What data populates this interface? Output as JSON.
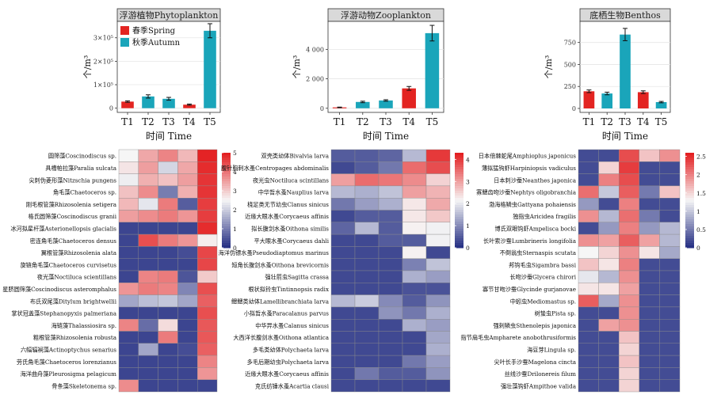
{
  "colors": {
    "spring": "#e32421",
    "autumn": "#1aa5ba",
    "heat_low": "#232d82",
    "heat_mid": "#f6f6f6",
    "heat_high": "#e31a1c",
    "panel_bg": "#ffffff",
    "grid": "#e6e6e6",
    "strip_bg": "#d9d9d9"
  },
  "chart_data": [
    {
      "type": "bar",
      "title": "浮游植物Phytoplankton",
      "categories": [
        "T1",
        "T2",
        "T3",
        "T4",
        "T5"
      ],
      "xlabel": "时间 Time",
      "ylabel": "个/m³",
      "y_ticks": [
        "0",
        "1×10⁵",
        "2×10⁵",
        "3×10⁵"
      ],
      "y_tick_values": [
        0,
        100000,
        200000,
        300000
      ],
      "ylim": [
        -18000,
        370000
      ],
      "legend": {
        "position": "top-left",
        "entries": [
          {
            "name": "春季Spring",
            "series": "spring"
          },
          {
            "name": "秋季Autumn",
            "series": "autumn"
          }
        ]
      },
      "season": [
        "spring",
        "autumn",
        "autumn",
        "spring",
        "autumn"
      ],
      "values": [
        28000,
        50000,
        40000,
        15000,
        330000
      ],
      "errors": [
        3000,
        7000,
        6000,
        2500,
        30000
      ]
    },
    {
      "type": "bar",
      "title": "浮游动物Zooplankton",
      "categories": [
        "T1",
        "T2",
        "T3",
        "T4",
        "T5"
      ],
      "xlabel": "时间 Time",
      "ylabel": "个/m³",
      "y_ticks": [
        "0",
        "2 000",
        "4 000"
      ],
      "y_tick_values": [
        0,
        2000,
        4000
      ],
      "ylim": [
        -280,
        5900
      ],
      "season": [
        "spring",
        "autumn",
        "autumn",
        "spring",
        "autumn"
      ],
      "values": [
        60,
        430,
        530,
        1350,
        5100
      ],
      "errors": [
        20,
        50,
        50,
        130,
        530
      ]
    },
    {
      "type": "bar",
      "title": "底栖生物Benthos",
      "categories": [
        "T1",
        "T2",
        "T3",
        "T4",
        "T5"
      ],
      "xlabel": "时间 Time",
      "ylabel": "个/m³",
      "y_ticks": [
        "0",
        "250",
        "500",
        "750"
      ],
      "y_tick_values": [
        0,
        250,
        500,
        750
      ],
      "ylim": [
        -45,
        990
      ],
      "season": [
        "spring",
        "autumn",
        "autumn",
        "spring",
        "autumn"
      ],
      "values": [
        195,
        170,
        840,
        185,
        72
      ],
      "errors": [
        15,
        15,
        70,
        15,
        8
      ]
    },
    {
      "type": "heatmap",
      "columns": 5,
      "scale": [
        0,
        5
      ],
      "colorbar_ticks": [
        "0",
        "1",
        "2",
        "3",
        "4",
        "5"
      ],
      "rows": [
        {
          "label": "圆筛藻Coscinodiscus sp.",
          "values": [
            2.5,
            3.4,
            3.8,
            3.2,
            4.9
          ]
        },
        {
          "label": "具槽帕拉藻Paralia sulcata",
          "values": [
            2.7,
            3.5,
            2.1,
            3.4,
            4.8
          ]
        },
        {
          "label": "尖刺伪菱形藻Nitzschia pungens",
          "values": [
            2.4,
            3.3,
            3.1,
            3.5,
            4.7
          ]
        },
        {
          "label": "角毛藻Chaetoceros sp.",
          "values": [
            3.1,
            3.7,
            1.0,
            3.3,
            4.7
          ]
        },
        {
          "label": "刚毛根管藻Rhizosolenia setigera",
          "values": [
            3.2,
            2.3,
            3.9,
            0.6,
            4.6
          ]
        },
        {
          "label": "格氏圆筛藻Coscinodiscus granii",
          "values": [
            3.5,
            3.7,
            3.9,
            3.6,
            4.6
          ]
        },
        {
          "label": "冰河拟星杆藻Asterionellopsis glacialis",
          "values": [
            0.3,
            0.3,
            0.3,
            0.3,
            4.8
          ]
        },
        {
          "label": "密连角毛藻Chaetoceros densus",
          "values": [
            0.3,
            4.4,
            3.9,
            3.6,
            2.6
          ]
        },
        {
          "label": "翼根管藻Rhizosolenia alata",
          "values": [
            0.3,
            0.3,
            0.3,
            0.4,
            4.5
          ]
        },
        {
          "label": "旋链角毛藻Chaetoceros curvisetus",
          "values": [
            0.3,
            0.3,
            0.3,
            0.3,
            4.5
          ]
        },
        {
          "label": "夜光藻Noctiluca scientillans",
          "values": [
            0.3,
            3.8,
            3.9,
            0.5,
            3.0
          ]
        },
        {
          "label": "星脐圆筛藻Coscinodiscus asteromphalus",
          "values": [
            3.6,
            3.9,
            3.8,
            1.1,
            4.4
          ]
        },
        {
          "label": "布氏双尾藻Ditylum brightwellii",
          "values": [
            1.5,
            1.8,
            1.9,
            1.5,
            4.2
          ]
        },
        {
          "label": "掌状冠盖藻Stephanopyxis palmeriana",
          "values": [
            0.3,
            0.3,
            0.3,
            0.3,
            4.4
          ]
        },
        {
          "label": "海链藻Thalassiosira sp.",
          "values": [
            3.8,
            0.8,
            2.8,
            0.3,
            4.3
          ]
        },
        {
          "label": "粗根管藻Rhizosolenia robusta",
          "values": [
            0.3,
            0.3,
            3.9,
            0.3,
            4.3
          ]
        },
        {
          "label": "六幅辐裥藻Actinoptychus senarius",
          "values": [
            0.3,
            1.5,
            0.3,
            0.4,
            4.2
          ]
        },
        {
          "label": "劳氏角毛藻Chaetoceros lorenzianus",
          "values": [
            0.3,
            0.3,
            0.3,
            0.3,
            3.8
          ]
        },
        {
          "label": "海洋曲舟藻Pleurosigma pelagicum",
          "values": [
            0.3,
            0.3,
            0.3,
            0.3,
            3.6
          ]
        },
        {
          "label": "骨条藻Skeletonema sp.",
          "values": [
            3.7,
            0.3,
            0.3,
            0.3,
            0.3
          ]
        }
      ]
    },
    {
      "type": "heatmap",
      "columns": 5,
      "scale": [
        0,
        4.3
      ],
      "colorbar_ticks": [
        "0",
        "1",
        "2",
        "3",
        "4"
      ],
      "rows": [
        {
          "label": "双壳类幼体Bivalvia larva",
          "values": [
            0.5,
            0.5,
            0.6,
            1.5,
            4.0
          ]
        },
        {
          "label": "腹针胸刺水蚤Centropages abdominalis",
          "values": [
            0.3,
            0.5,
            0.8,
            3.5,
            3.8
          ]
        },
        {
          "label": "夜光虫Noctiluca scintillans",
          "values": [
            3.0,
            3.5,
            3.4,
            3.2,
            2.5
          ]
        },
        {
          "label": "中华哲水蚤Nauplius larva",
          "values": [
            1.5,
            1.4,
            1.6,
            3.0,
            2.8
          ]
        },
        {
          "label": "桡足类无节幼虫Clanus sinicus",
          "values": [
            0.8,
            1.2,
            1.4,
            2.3,
            2.9
          ]
        },
        {
          "label": "近缘大眼水蚤Corycaeus affinis",
          "values": [
            0.3,
            0.5,
            0.5,
            2.3,
            2.6
          ]
        },
        {
          "label": "拟长腹剑水蚤Oithona similis",
          "values": [
            0.6,
            1.5,
            0.5,
            2.2,
            2.1
          ]
        },
        {
          "label": "平大眼水蚤Corycaeus dahli",
          "values": [
            0.3,
            0.3,
            0.5,
            0.5,
            2.1
          ]
        },
        {
          "label": "海洋伪镖水蚤Pseudodiaptomus marinus",
          "values": [
            0.3,
            0.3,
            0.3,
            2.2,
            0.3
          ]
        },
        {
          "label": "短角长腹剑水蚤Oithona brevicornis",
          "values": [
            0.3,
            0.3,
            0.3,
            0.9,
            1.6
          ]
        },
        {
          "label": "强壮箭虫Sagitta crassa",
          "values": [
            0.3,
            0.3,
            0.3,
            1.4,
            1.2
          ]
        },
        {
          "label": "根状拟铃虫Tintinnopsis radix",
          "values": [
            0.3,
            0.3,
            0.3,
            0.4,
            0.4
          ]
        },
        {
          "label": "鳃鳃类幼体Lamellibranchiata larva",
          "values": [
            1.5,
            1.7,
            1.0,
            0.5,
            1.1
          ]
        },
        {
          "label": "小拟哲水蚤Paracalanus parvus",
          "values": [
            0.3,
            0.3,
            1.1,
            0.8,
            1.4
          ]
        },
        {
          "label": "中华异水蚤Calanus sinicus",
          "values": [
            0.3,
            0.3,
            0.3,
            1.4,
            1.2
          ]
        },
        {
          "label": "大西洋长腹剑水蚤Oithona atlantica",
          "values": [
            0.3,
            0.3,
            0.3,
            0.3,
            1.3
          ]
        },
        {
          "label": "多毛类幼体Polychaeta larva",
          "values": [
            0.3,
            0.3,
            0.3,
            0.3,
            1.4
          ]
        },
        {
          "label": "多毛后期幼虫Polychaeta larva",
          "values": [
            0.3,
            0.3,
            0.3,
            0.8,
            1.2
          ]
        },
        {
          "label": "近缘大眼水蚤Corycaeus affinis",
          "values": [
            0.3,
            0.8,
            0.5,
            0.5,
            1.1
          ]
        },
        {
          "label": "克氏纺锤水蚤Acartia clausi",
          "values": [
            0.3,
            0.3,
            0.3,
            0.3,
            0.3
          ]
        }
      ]
    },
    {
      "type": "heatmap",
      "columns": 5,
      "scale": [
        0,
        2.6
      ],
      "colorbar_ticks": [
        "0",
        "0.5",
        "1",
        "1.5",
        "2",
        "2.5"
      ],
      "rows": [
        {
          "label": "日本倍棘蛇尾Amphioplus japonicus",
          "values": [
            0.2,
            0.2,
            2.3,
            1.6,
            1.9
          ]
        },
        {
          "label": "薄拟猛钩虾Harpiniopsis vadiculus",
          "values": [
            0.2,
            1.5,
            2.4,
            0.2,
            0.2
          ]
        },
        {
          "label": "日本刺沙蚕Neanthes japonica",
          "values": [
            0.2,
            2.0,
            2.3,
            0.2,
            0.2
          ]
        },
        {
          "label": "寡鳃齿吻沙蚕Nephtys oligobranchia",
          "values": [
            2.1,
            1.0,
            2.2,
            0.5,
            1.6
          ]
        },
        {
          "label": "渤海格鳞虫Gattyana pohaiensis",
          "values": [
            0.7,
            0.2,
            2.0,
            0.2,
            0.2
          ]
        },
        {
          "label": "独指虫Aricidea fragilis",
          "values": [
            1.9,
            0.9,
            2.1,
            0.5,
            0.2
          ]
        },
        {
          "label": "博氏双眼钩虾Ampelisca bocki",
          "values": [
            0.2,
            0.7,
            2.0,
            0.7,
            0.9
          ]
        },
        {
          "label": "长叶索沙蚕Lumbrineris longifolia",
          "values": [
            1.9,
            1.8,
            2.2,
            1.8,
            0.9
          ]
        },
        {
          "label": "不倒翁虫Sternaspis scutata",
          "values": [
            1.3,
            1.5,
            1.9,
            1.4,
            0.8
          ]
        },
        {
          "label": "邦钩毛虫Sigambra bassi",
          "values": [
            1.6,
            1.4,
            2.0,
            0.2,
            0.2
          ]
        },
        {
          "label": "长吻沙蚕Glycera chirori",
          "values": [
            1.2,
            0.9,
            1.9,
            0.2,
            0.2
          ]
        },
        {
          "label": "寡节甘吻沙蚕Glycinde gurjanovae",
          "values": [
            1.4,
            1.4,
            1.8,
            0.2,
            0.2
          ]
        },
        {
          "label": "中蚓虫Mediomastus sp.",
          "values": [
            2.2,
            0.8,
            1.9,
            0.2,
            0.2
          ]
        },
        {
          "label": "树蛰虫Pista sp.",
          "values": [
            0.2,
            0.2,
            1.9,
            0.2,
            0.2
          ]
        },
        {
          "label": "强刺鳞虫Sthenolepis japonica",
          "values": [
            0.2,
            1.8,
            1.9,
            0.2,
            0.2
          ]
        },
        {
          "label": "指节扇毛虫Ampharete anobothrusiformis",
          "values": [
            0.2,
            0.2,
            1.6,
            0.2,
            0.2
          ]
        },
        {
          "label": "海豆芽Lingula sp.",
          "values": [
            0.2,
            0.2,
            1.5,
            0.2,
            0.2
          ]
        },
        {
          "label": "尖叶长手沙蚕Magelona cincta",
          "values": [
            0.2,
            0.2,
            1.6,
            0.2,
            0.2
          ]
        },
        {
          "label": "丝线沙蚕Drilonereis filum",
          "values": [
            0.2,
            0.2,
            1.5,
            0.2,
            0.2
          ]
        },
        {
          "label": "强壮藻钩虾Ampithoe valida",
          "values": [
            0.2,
            0.2,
            1.5,
            0.2,
            0.2
          ]
        }
      ]
    }
  ]
}
